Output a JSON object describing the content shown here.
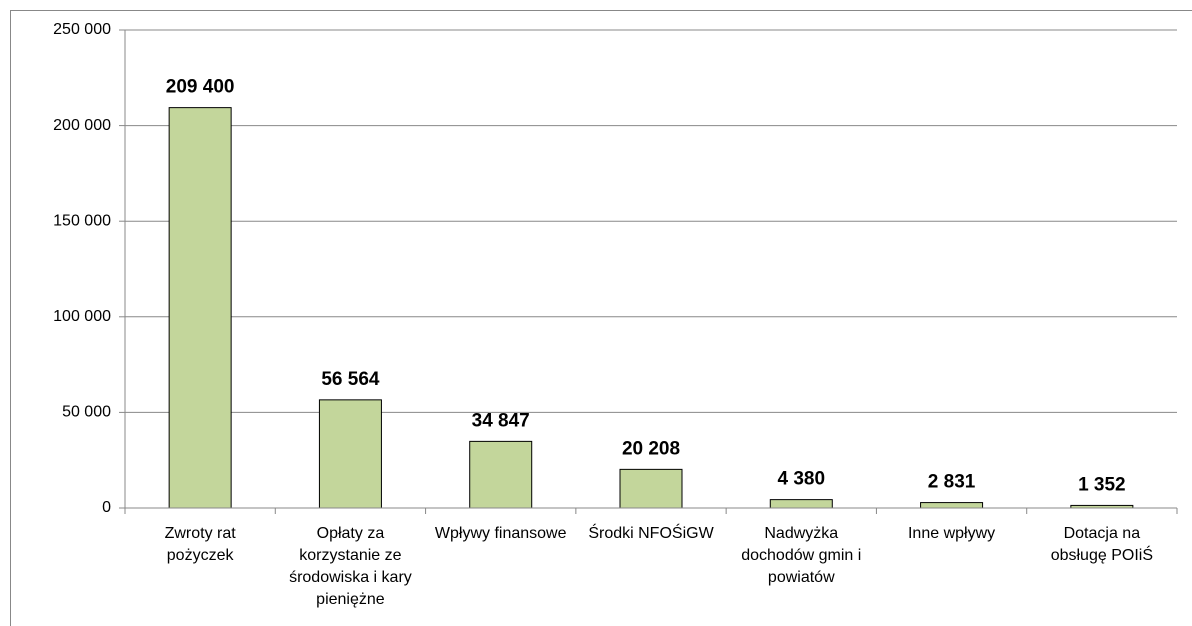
{
  "chart_data": {
    "type": "bar",
    "categories": [
      "Zwroty rat pożyczek",
      "Opłaty za korzystanie ze środowiska i kary pieniężne",
      "Wpływy finansowe",
      "Środki NFOŚiGW",
      "Nadwyżka dochodów gmin i powiatów",
      "Inne wpływy",
      "Dotacja na obsługę POIiŚ"
    ],
    "values": [
      209400,
      56564,
      34847,
      20208,
      4380,
      2831,
      1352
    ],
    "value_labels": [
      "209 400",
      "56 564",
      "34 847",
      "20 208",
      "4 380",
      "2 831",
      "1 352"
    ],
    "color": "#c3d69b",
    "ylim": [
      0,
      250000
    ],
    "yticks": [
      0,
      {
        "value": 50000,
        "label": "50 000"
      },
      {
        "value": 100000,
        "label": "100 000"
      },
      {
        "value": 150000,
        "label": "150 000"
      },
      {
        "value": 200000,
        "label": "200 000"
      },
      {
        "value": 250000,
        "label": "250 000"
      }
    ],
    "grid": true
  }
}
